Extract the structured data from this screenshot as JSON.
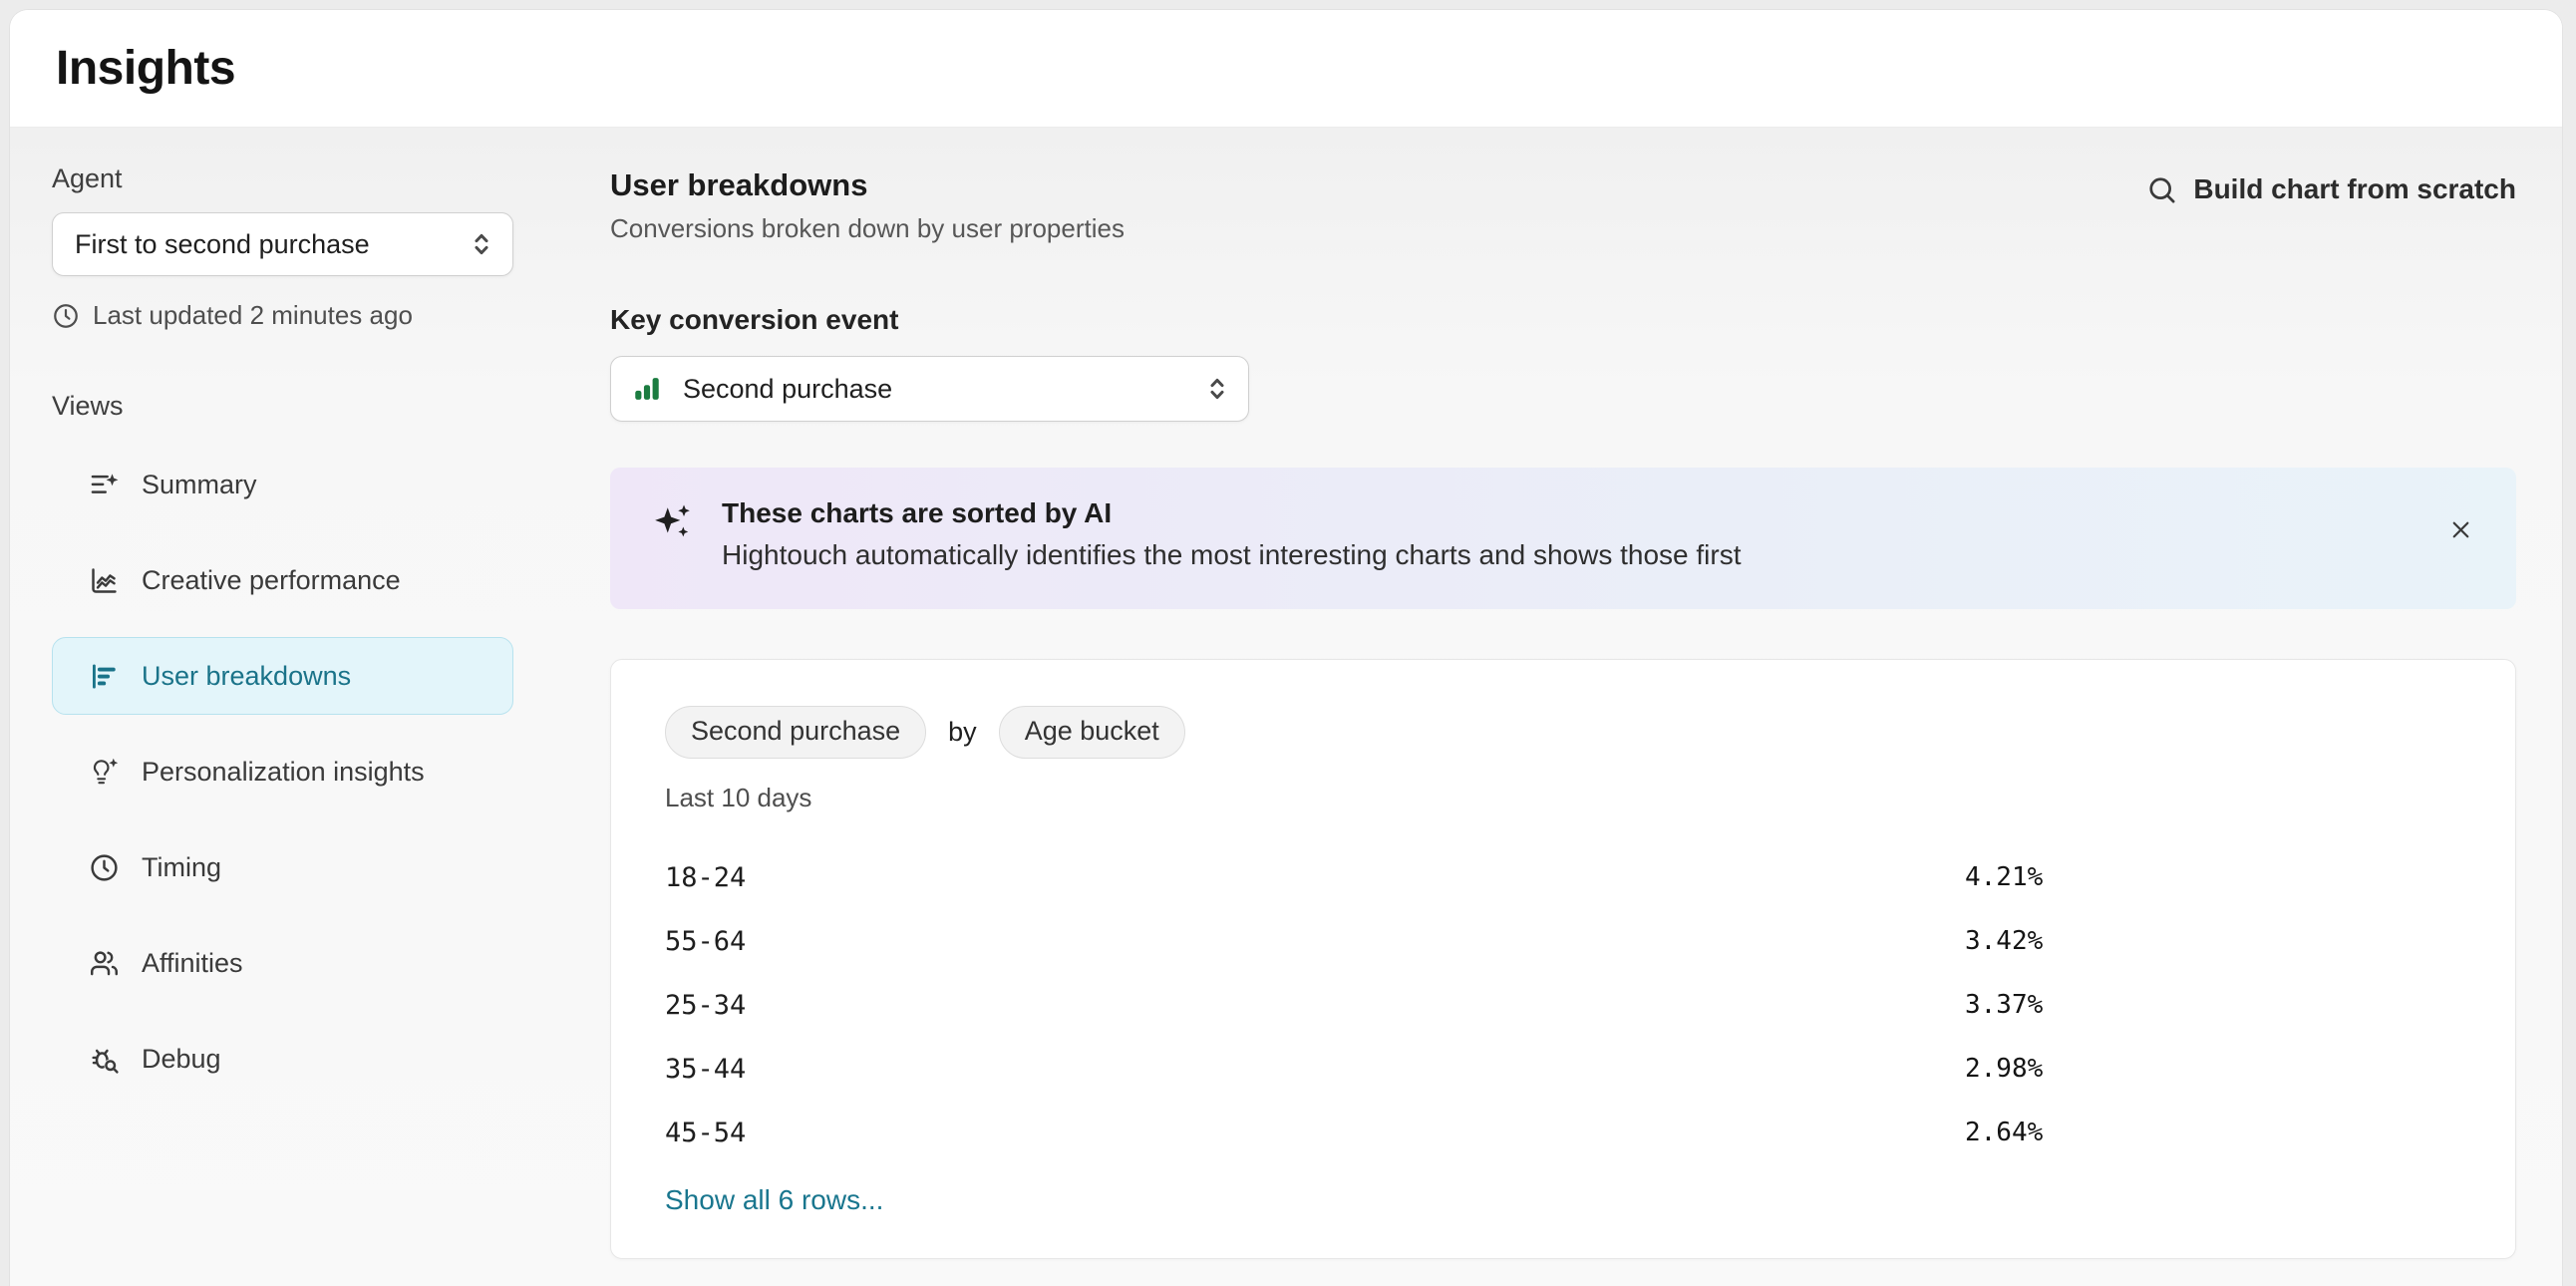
{
  "page": {
    "title": "Insights"
  },
  "colors": {
    "accent_teal": "#1a7389",
    "link_teal": "#19768e",
    "icon_green": "#1b7c40"
  },
  "sidebar": {
    "agent_label": "Agent",
    "agent_select": {
      "value": "First to second purchase"
    },
    "last_updated": "Last updated 2 minutes ago",
    "views_label": "Views",
    "items": [
      {
        "label": "Summary",
        "icon": "summary-list-icon",
        "active": false
      },
      {
        "label": "Creative performance",
        "icon": "line-chart-icon",
        "active": false
      },
      {
        "label": "User breakdowns",
        "icon": "bar-chart-horizontal-icon",
        "active": true
      },
      {
        "label": "Personalization insights",
        "icon": "lightbulb-sparkle-icon",
        "active": false
      },
      {
        "label": "Timing",
        "icon": "clock-icon",
        "active": false
      },
      {
        "label": "Affinities",
        "icon": "users-icon",
        "active": false
      },
      {
        "label": "Debug",
        "icon": "bug-search-icon",
        "active": false
      }
    ]
  },
  "main": {
    "title": "User breakdowns",
    "subtitle": "Conversions broken down by user properties",
    "build_chart_label": "Build chart from scratch",
    "key_conversion": {
      "label": "Key conversion event",
      "value": "Second purchase"
    },
    "ai_banner": {
      "title": "These charts are sorted by AI",
      "subtitle": "Hightouch automatically identifies the most interesting charts and shows those first"
    },
    "chart_card": {
      "metric_pill": "Second purchase",
      "by_label": "by",
      "dimension_pill": "Age bucket",
      "timeframe": "Last 10 days",
      "show_all_label": "Show all 6 rows..."
    }
  },
  "chart_data": {
    "type": "bar",
    "orientation": "horizontal",
    "title": "Second purchase by Age bucket",
    "timeframe": "Last 10 days",
    "categories": [
      "18-24",
      "55-64",
      "25-34",
      "35-44",
      "45-54"
    ],
    "values": [
      4.21,
      3.42,
      3.37,
      2.98,
      2.64
    ],
    "value_labels": [
      "4.21%",
      "3.42%",
      "3.37%",
      "2.98%",
      "2.64%"
    ],
    "bar_colors": [
      "#74aed4",
      "#d48d75",
      "#e4c184",
      "#9286dc",
      "#88b58e"
    ],
    "xlim": [
      0,
      4.21
    ],
    "grid": false,
    "legend": false,
    "visible_rows": 5,
    "total_rows": 6
  }
}
